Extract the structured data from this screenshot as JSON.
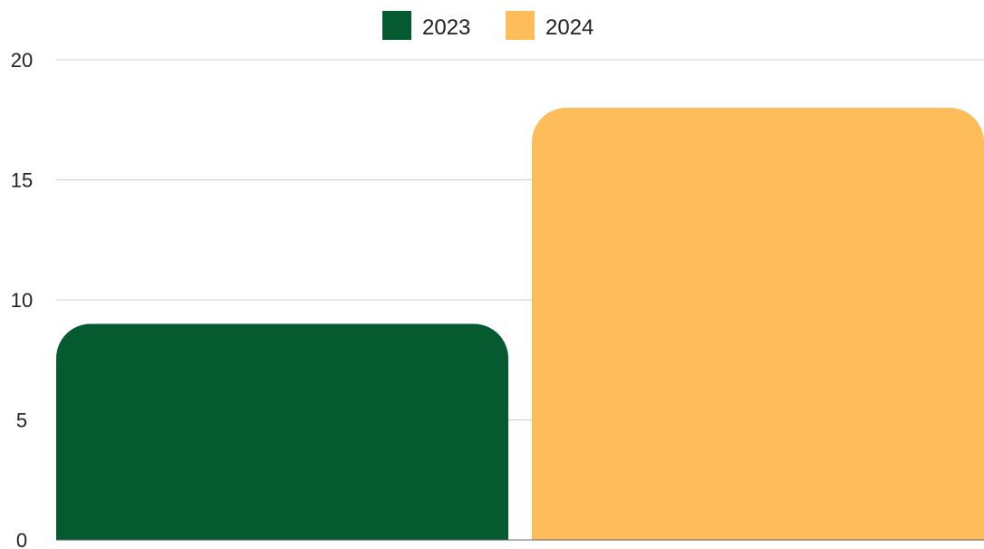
{
  "chart_data": {
    "type": "bar",
    "categories": [
      ""
    ],
    "series": [
      {
        "name": "2023",
        "values": [
          9
        ],
        "color": "#055B2F"
      },
      {
        "name": "2024",
        "values": [
          18
        ],
        "color": "#FEBC5B"
      }
    ],
    "ylim": [
      0,
      20
    ],
    "yticks": [
      0,
      5,
      10,
      15,
      20
    ],
    "ytick_labels": [
      "0",
      "5",
      "10",
      "15",
      "20"
    ],
    "grid": true,
    "legend_position": "top-center",
    "gridline_color": "#cccccc",
    "axis_color": "#666666"
  }
}
